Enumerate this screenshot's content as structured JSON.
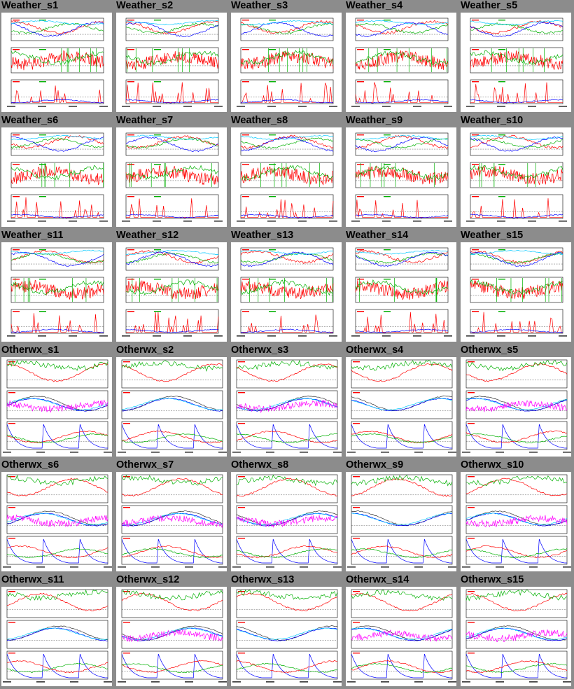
{
  "page": {
    "title": "",
    "background_color": "#8c8c8c"
  },
  "colors": {
    "panel_bg": "#ffffff",
    "frame": "#000000",
    "red": "#ff0000",
    "green": "#00b000",
    "blue": "#0000ff",
    "cyan": "#00c8ff",
    "magenta": "#ff00ff",
    "dark": "#333333"
  },
  "gallery": {
    "columns": 5,
    "thumbnails": [
      {
        "label": "Weather_s1",
        "kind": "weather"
      },
      {
        "label": "Weather_s2",
        "kind": "weather"
      },
      {
        "label": "Weather_s3",
        "kind": "weather"
      },
      {
        "label": "Weather_s4",
        "kind": "weather"
      },
      {
        "label": "Weather_s5",
        "kind": "weather"
      },
      {
        "label": "Weather_s6",
        "kind": "weather"
      },
      {
        "label": "Weather_s7",
        "kind": "weather"
      },
      {
        "label": "Weather_s8",
        "kind": "weather"
      },
      {
        "label": "Weather_s9",
        "kind": "weather"
      },
      {
        "label": "Weather_s10",
        "kind": "weather"
      },
      {
        "label": "Weather_s11",
        "kind": "weather"
      },
      {
        "label": "Weather_s12",
        "kind": "weather"
      },
      {
        "label": "Weather_s13",
        "kind": "weather"
      },
      {
        "label": "Weather_s14",
        "kind": "weather"
      },
      {
        "label": "Weather_s15",
        "kind": "weather"
      },
      {
        "label": "Otherwx_s1",
        "kind": "otherwx"
      },
      {
        "label": "Otherwx_s2",
        "kind": "otherwx"
      },
      {
        "label": "Otherwx_s3",
        "kind": "otherwx"
      },
      {
        "label": "Otherwx_s4",
        "kind": "otherwx"
      },
      {
        "label": "Otherwx_s5",
        "kind": "otherwx"
      },
      {
        "label": "Otherwx_s6",
        "kind": "otherwx"
      },
      {
        "label": "Otherwx_s7",
        "kind": "otherwx"
      },
      {
        "label": "Otherwx_s8",
        "kind": "otherwx"
      },
      {
        "label": "Otherwx_s9",
        "kind": "otherwx"
      },
      {
        "label": "Otherwx_s10",
        "kind": "otherwx"
      },
      {
        "label": "Otherwx_s11",
        "kind": "otherwx"
      },
      {
        "label": "Otherwx_s12",
        "kind": "otherwx"
      },
      {
        "label": "Otherwx_s13",
        "kind": "otherwx"
      },
      {
        "label": "Otherwx_s14",
        "kind": "otherwx"
      },
      {
        "label": "Otherwx_s15",
        "kind": "otherwx"
      }
    ]
  },
  "chart_data": {
    "type": "line",
    "title": "",
    "description_kind": "gallery of 30 small-multiple time-series thumbnails (3 stacked panels each); per-point values are too small to read",
    "weather_panels": 3,
    "otherwx_panels": 3,
    "series_colors": [
      "red",
      "green",
      "blue",
      "cyan",
      "magenta"
    ]
  }
}
